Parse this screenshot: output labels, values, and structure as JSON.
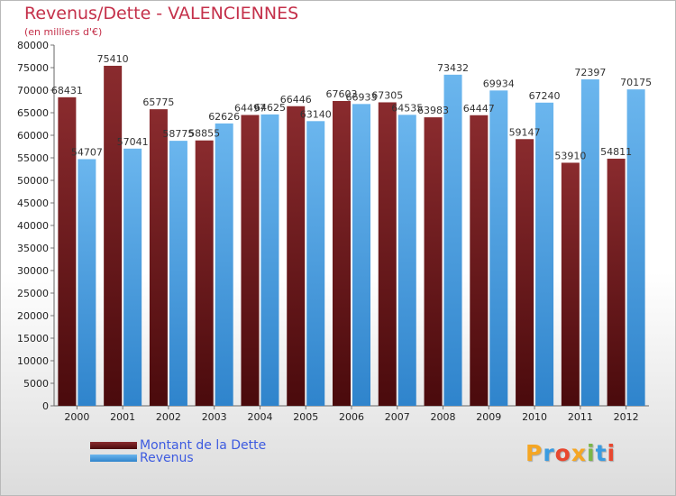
{
  "colors": {
    "dette_top": "#8a2b2e",
    "dette_bottom": "#4a0a0c",
    "revenus_top": "#6bb6ee",
    "revenus_bottom": "#2f84cc",
    "title": "#c4304a",
    "legend_text": "#3d5be0"
  },
  "chart_data": {
    "type": "bar",
    "title": "Revenus/Dette - VALENCIENNES",
    "subtitle": "(en milliers d'€)",
    "categories": [
      "2000",
      "2001",
      "2002",
      "2003",
      "2004",
      "2005",
      "2006",
      "2007",
      "2008",
      "2009",
      "2010",
      "2011",
      "2012"
    ],
    "series": [
      {
        "name": "Montant de la Dette",
        "key": "dette",
        "values": [
          68431,
          75410,
          65775,
          58855,
          64497,
          66446,
          67603,
          67305,
          63983,
          64447,
          59147,
          53910,
          54811
        ],
        "labels": [
          "68431",
          "75410",
          "65775",
          "58855",
          "64497",
          "66446",
          "67603",
          "67305",
          "63983",
          "64447",
          "59147",
          "53910",
          "54811"
        ]
      },
      {
        "name": "Revenus",
        "key": "revenus",
        "values": [
          54707,
          57041,
          58775,
          62626,
          64625,
          63140,
          66933,
          64535,
          73432,
          69934,
          67240,
          72397,
          70175
        ],
        "labels": [
          "54707",
          "57041",
          "58775",
          "62626",
          "64625",
          "63140",
          "66933",
          "64535",
          "73432",
          "69934",
          "67240",
          "72397",
          "70175"
        ]
      }
    ],
    "ylim": [
      0,
      80000
    ],
    "yticks": [
      "0",
      "5000",
      "10000",
      "15000",
      "20000",
      "25000",
      "30000",
      "35000",
      "40000",
      "45000",
      "50000",
      "55000",
      "60000",
      "65000",
      "70000",
      "75000",
      "80000"
    ],
    "grid": false,
    "legend_position": "bottom-left",
    "xlabel": "",
    "ylabel": ""
  },
  "legend": {
    "items": [
      {
        "label": "Montant de la Dette"
      },
      {
        "label": "Revenus"
      }
    ]
  },
  "logo": {
    "letters": [
      "P",
      "r",
      "o",
      "x",
      "i",
      "t",
      "i"
    ],
    "colors": [
      "#f5a623",
      "#3a9be0",
      "#e8472f",
      "#f5a623",
      "#7ab648",
      "#3a9be0",
      "#e8472f"
    ]
  }
}
